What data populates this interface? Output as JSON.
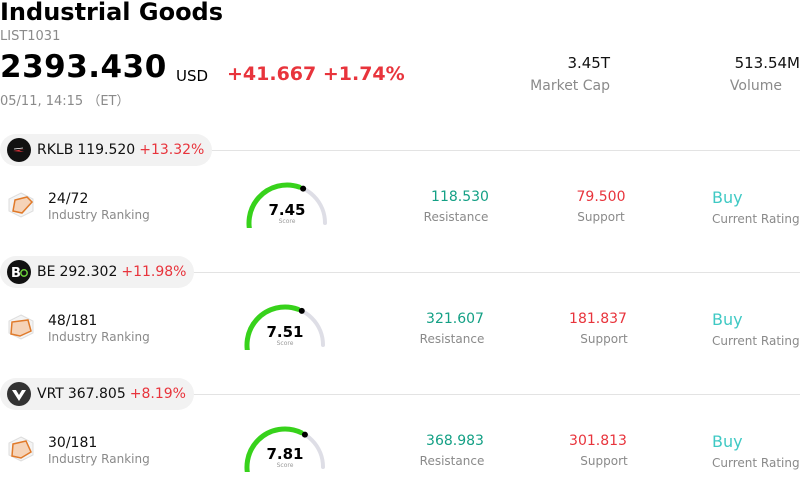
{
  "header": {
    "title": "Industrial Goods",
    "code": "LIST1031",
    "price": "2393.430",
    "currency": "USD",
    "change": "+41.667 +1.74%",
    "timestamp": "05/11, 14:15 （ET）",
    "market_cap": {
      "value": "3.45T",
      "label": "Market Cap"
    },
    "volume": {
      "value": "513.54M",
      "label": "Volume"
    }
  },
  "labels": {
    "industry_ranking": "Industry Ranking",
    "score": "Score",
    "resistance": "Resistance",
    "support": "Support",
    "current_rating": "Current Rating"
  },
  "colors": {
    "up": "#e8343c",
    "resistance": "#14a085",
    "rating": "#3fc9c4",
    "gauge": "#37d21b"
  },
  "stocks": [
    {
      "symbol": "RKLB",
      "price": "119.520",
      "change_pct": "+13.32%",
      "logo": "rocket-lab-logo",
      "ranking": "24/72",
      "score": "7.45",
      "score_fraction": 0.745,
      "resistance": "118.530",
      "support": "79.500",
      "rating": "Buy"
    },
    {
      "symbol": "BE",
      "price": "292.302",
      "change_pct": "+11.98%",
      "logo": "bloom-energy-logo",
      "ranking": "48/181",
      "score": "7.51",
      "score_fraction": 0.751,
      "resistance": "321.607",
      "support": "181.837",
      "rating": "Buy"
    },
    {
      "symbol": "VRT",
      "price": "367.805",
      "change_pct": "+8.19%",
      "logo": "vertiv-logo",
      "ranking": "30/181",
      "score": "7.81",
      "score_fraction": 0.781,
      "resistance": "368.983",
      "support": "301.813",
      "rating": "Buy"
    }
  ]
}
